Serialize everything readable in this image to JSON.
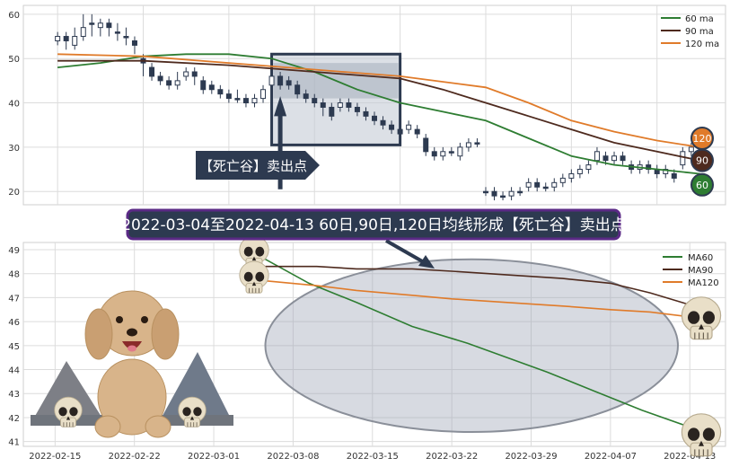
{
  "banner": "2022-03-04至2022-04-13 60日,90日,120日均线形成【死亡谷】卖出点",
  "sell_label": "【死亡谷】卖出点",
  "badges": [
    "120",
    "90",
    "60"
  ],
  "colors": {
    "ma60": "#2e7d32",
    "ma90": "#4e2a1e",
    "ma120": "#e07b2a",
    "banner_bg": "#2d3a50",
    "banner_border": "#5b2a86"
  },
  "chart_data": [
    {
      "type": "line",
      "title": "",
      "ylim": [
        17,
        62
      ],
      "yticks": [
        20,
        30,
        40,
        50,
        60
      ],
      "candles": [
        [
          0,
          54,
          55,
          56,
          53,
          1
        ],
        [
          1,
          55,
          54,
          56,
          52,
          0
        ],
        [
          2,
          53,
          55,
          57,
          52,
          1
        ],
        [
          3,
          55,
          57,
          60,
          54,
          1
        ],
        [
          4,
          58,
          58,
          60,
          55,
          0
        ],
        [
          5,
          57,
          58,
          59,
          55,
          1
        ],
        [
          6,
          58,
          57,
          59,
          55,
          0
        ],
        [
          7,
          56,
          56,
          58,
          54,
          0
        ],
        [
          8,
          55,
          55,
          57,
          53,
          0
        ],
        [
          9,
          54,
          53,
          55,
          51,
          0
        ],
        [
          10,
          50,
          49,
          51,
          46,
          0
        ],
        [
          11,
          48,
          46,
          49,
          45,
          0
        ],
        [
          12,
          46,
          45,
          47,
          44,
          0
        ],
        [
          13,
          45,
          44,
          46,
          43,
          0
        ],
        [
          14,
          44,
          45,
          47,
          43,
          1
        ],
        [
          15,
          46,
          47,
          48,
          45,
          1
        ],
        [
          16,
          47,
          46,
          48,
          44,
          0
        ],
        [
          17,
          45,
          43,
          46,
          42,
          0
        ],
        [
          18,
          44,
          43,
          45,
          42,
          0
        ],
        [
          19,
          43,
          42,
          44,
          41,
          0
        ],
        [
          20,
          42,
          41,
          43,
          40,
          0
        ],
        [
          21,
          41,
          41,
          43,
          40,
          0
        ],
        [
          22,
          41,
          40,
          42,
          39,
          0
        ],
        [
          23,
          40,
          41,
          42,
          39,
          1
        ],
        [
          24,
          41,
          43,
          44,
          40,
          1
        ],
        [
          25,
          44,
          46,
          47,
          43,
          1
        ],
        [
          26,
          46,
          44,
          47,
          43,
          0
        ],
        [
          27,
          45,
          44,
          46,
          43,
          0
        ],
        [
          28,
          44,
          42,
          45,
          41,
          0
        ],
        [
          29,
          42,
          41,
          43,
          40,
          0
        ],
        [
          30,
          41,
          40,
          42,
          39,
          0
        ],
        [
          31,
          40,
          39,
          41,
          37,
          0
        ],
        [
          32,
          39,
          37,
          40,
          36,
          0
        ],
        [
          33,
          39,
          40,
          41,
          38,
          1
        ],
        [
          34,
          40,
          39,
          41,
          38,
          0
        ],
        [
          35,
          39,
          38,
          40,
          37,
          0
        ],
        [
          36,
          38,
          37,
          39,
          36,
          0
        ],
        [
          37,
          37,
          36,
          38,
          35,
          0
        ],
        [
          38,
          36,
          35,
          37,
          34,
          0
        ],
        [
          39,
          35,
          34,
          36,
          33,
          0
        ],
        [
          40,
          34,
          33,
          35,
          32,
          0
        ],
        [
          41,
          34,
          35,
          36,
          33,
          1
        ],
        [
          42,
          34,
          33,
          35,
          32,
          0
        ],
        [
          43,
          32,
          29,
          33,
          28,
          0
        ],
        [
          44,
          29,
          28,
          30,
          27,
          0
        ],
        [
          45,
          28,
          29,
          30,
          27,
          1
        ],
        [
          46,
          29,
          29,
          30,
          28,
          0
        ],
        [
          47,
          28,
          30,
          31,
          27,
          1
        ],
        [
          48,
          30,
          31,
          32,
          29,
          1
        ],
        [
          49,
          31,
          31,
          32,
          30,
          0
        ],
        [
          50,
          20,
          20,
          21,
          19,
          0
        ],
        [
          51,
          20,
          19,
          21,
          18,
          0
        ],
        [
          52,
          19,
          19,
          20,
          18,
          0
        ],
        [
          53,
          19,
          20,
          21,
          18,
          1
        ],
        [
          54,
          20,
          20,
          21,
          19,
          0
        ],
        [
          55,
          21,
          22,
          23,
          20,
          1
        ],
        [
          56,
          22,
          21,
          23,
          20,
          0
        ],
        [
          57,
          21,
          21,
          22,
          20,
          0
        ],
        [
          58,
          21,
          22,
          23,
          20,
          1
        ],
        [
          59,
          22,
          23,
          24,
          21,
          1
        ],
        [
          60,
          23,
          24,
          25,
          22,
          1
        ],
        [
          61,
          24,
          25,
          26,
          23,
          1
        ],
        [
          62,
          25,
          26,
          27,
          24,
          1
        ],
        [
          63,
          27,
          29,
          30,
          26,
          1
        ],
        [
          64,
          28,
          27,
          29,
          26,
          0
        ],
        [
          65,
          27,
          28,
          29,
          26,
          1
        ],
        [
          66,
          28,
          27,
          29,
          26,
          0
        ],
        [
          67,
          26,
          25,
          27,
          24,
          0
        ],
        [
          68,
          25,
          26,
          27,
          24,
          1
        ],
        [
          69,
          26,
          25,
          27,
          24,
          0
        ],
        [
          70,
          25,
          24,
          26,
          23,
          0
        ],
        [
          71,
          24,
          25,
          26,
          23,
          1
        ],
        [
          72,
          24,
          23,
          25,
          22,
          0
        ],
        [
          73,
          26,
          29,
          30,
          25,
          1
        ],
        [
          74,
          29,
          30,
          31,
          28,
          1
        ]
      ],
      "series": [
        {
          "name": "60 ma",
          "color": "#2e7d32",
          "values": [
            [
              0,
              48
            ],
            [
              5,
              49
            ],
            [
              10,
              50.5
            ],
            [
              15,
              51
            ],
            [
              20,
              51
            ],
            [
              25,
              50
            ],
            [
              30,
              47
            ],
            [
              35,
              43
            ],
            [
              40,
              40
            ],
            [
              45,
              38
            ],
            [
              50,
              36
            ],
            [
              55,
              32
            ],
            [
              60,
              28
            ],
            [
              65,
              26
            ],
            [
              70,
              25
            ],
            [
              75,
              24
            ]
          ]
        },
        {
          "name": "90 ma",
          "color": "#4e2a1e",
          "values": [
            [
              0,
              49.5
            ],
            [
              10,
              49.5
            ],
            [
              20,
              48.5
            ],
            [
              30,
              47
            ],
            [
              40,
              45.5
            ],
            [
              45,
              43
            ],
            [
              50,
              40
            ],
            [
              55,
              37
            ],
            [
              60,
              34
            ],
            [
              65,
              31
            ],
            [
              70,
              29
            ],
            [
              75,
              27
            ]
          ]
        },
        {
          "name": "120 ma",
          "color": "#e07b2a",
          "values": [
            [
              0,
              51
            ],
            [
              10,
              50.5
            ],
            [
              20,
              49
            ],
            [
              30,
              47.5
            ],
            [
              40,
              46
            ],
            [
              50,
              43.5
            ],
            [
              55,
              40
            ],
            [
              60,
              36
            ],
            [
              65,
              33.5
            ],
            [
              70,
              31.5
            ],
            [
              75,
              30
            ]
          ]
        }
      ],
      "highlight": {
        "x0": 25,
        "x1": 40,
        "y0": 30.5,
        "y1": 51
      },
      "sell_arrow_x": 26,
      "badge_values": [
        32,
        27,
        21.5
      ]
    },
    {
      "type": "line",
      "title": "",
      "ylim": [
        40.8,
        49.3
      ],
      "yticks": [
        41,
        42,
        43,
        44,
        45,
        46,
        47,
        48,
        49
      ],
      "x": [
        "2022-02-15",
        "2022-02-22",
        "2022-03-01",
        "2022-03-08",
        "2022-03-15",
        "2022-03-22",
        "2022-03-29",
        "2022-04-07",
        "2022-04-13"
      ],
      "series": [
        {
          "name": "MA60",
          "color": "#2e7d32",
          "values": [
            [
              2.65,
              48.6
            ],
            [
              3.2,
              47.6
            ],
            [
              3.8,
              46.8
            ],
            [
              4.5,
              45.8
            ],
            [
              5.2,
              45.1
            ],
            [
              5.7,
              44.5
            ],
            [
              6.2,
              43.9
            ],
            [
              6.8,
              43.1
            ],
            [
              7.4,
              42.3
            ],
            [
              8.0,
              41.6
            ],
            [
              8.2,
              41.3
            ]
          ]
        },
        {
          "name": "MA90",
          "color": "#4e2a1e",
          "values": [
            [
              2.65,
              48.3
            ],
            [
              3.3,
              48.3
            ],
            [
              3.8,
              48.2
            ],
            [
              4.5,
              48.2
            ],
            [
              5.0,
              48.1
            ],
            [
              5.7,
              47.95
            ],
            [
              6.4,
              47.8
            ],
            [
              7.0,
              47.6
            ],
            [
              7.5,
              47.2
            ],
            [
              8.0,
              46.7
            ],
            [
              8.2,
              46.6
            ]
          ]
        },
        {
          "name": "MA120",
          "color": "#e07b2a",
          "values": [
            [
              2.65,
              47.7
            ],
            [
              3.3,
              47.5
            ],
            [
              3.8,
              47.3
            ],
            [
              4.5,
              47.1
            ],
            [
              5.0,
              46.95
            ],
            [
              5.7,
              46.8
            ],
            [
              6.4,
              46.65
            ],
            [
              7.0,
              46.5
            ],
            [
              7.5,
              46.4
            ],
            [
              8.0,
              46.2
            ],
            [
              8.2,
              46.1
            ]
          ]
        }
      ],
      "ellipse": {
        "cx": 5.25,
        "cy": 45.0,
        "rx": 2.6,
        "ry": 3.6
      },
      "grid": true,
      "legend": "top-right"
    }
  ]
}
